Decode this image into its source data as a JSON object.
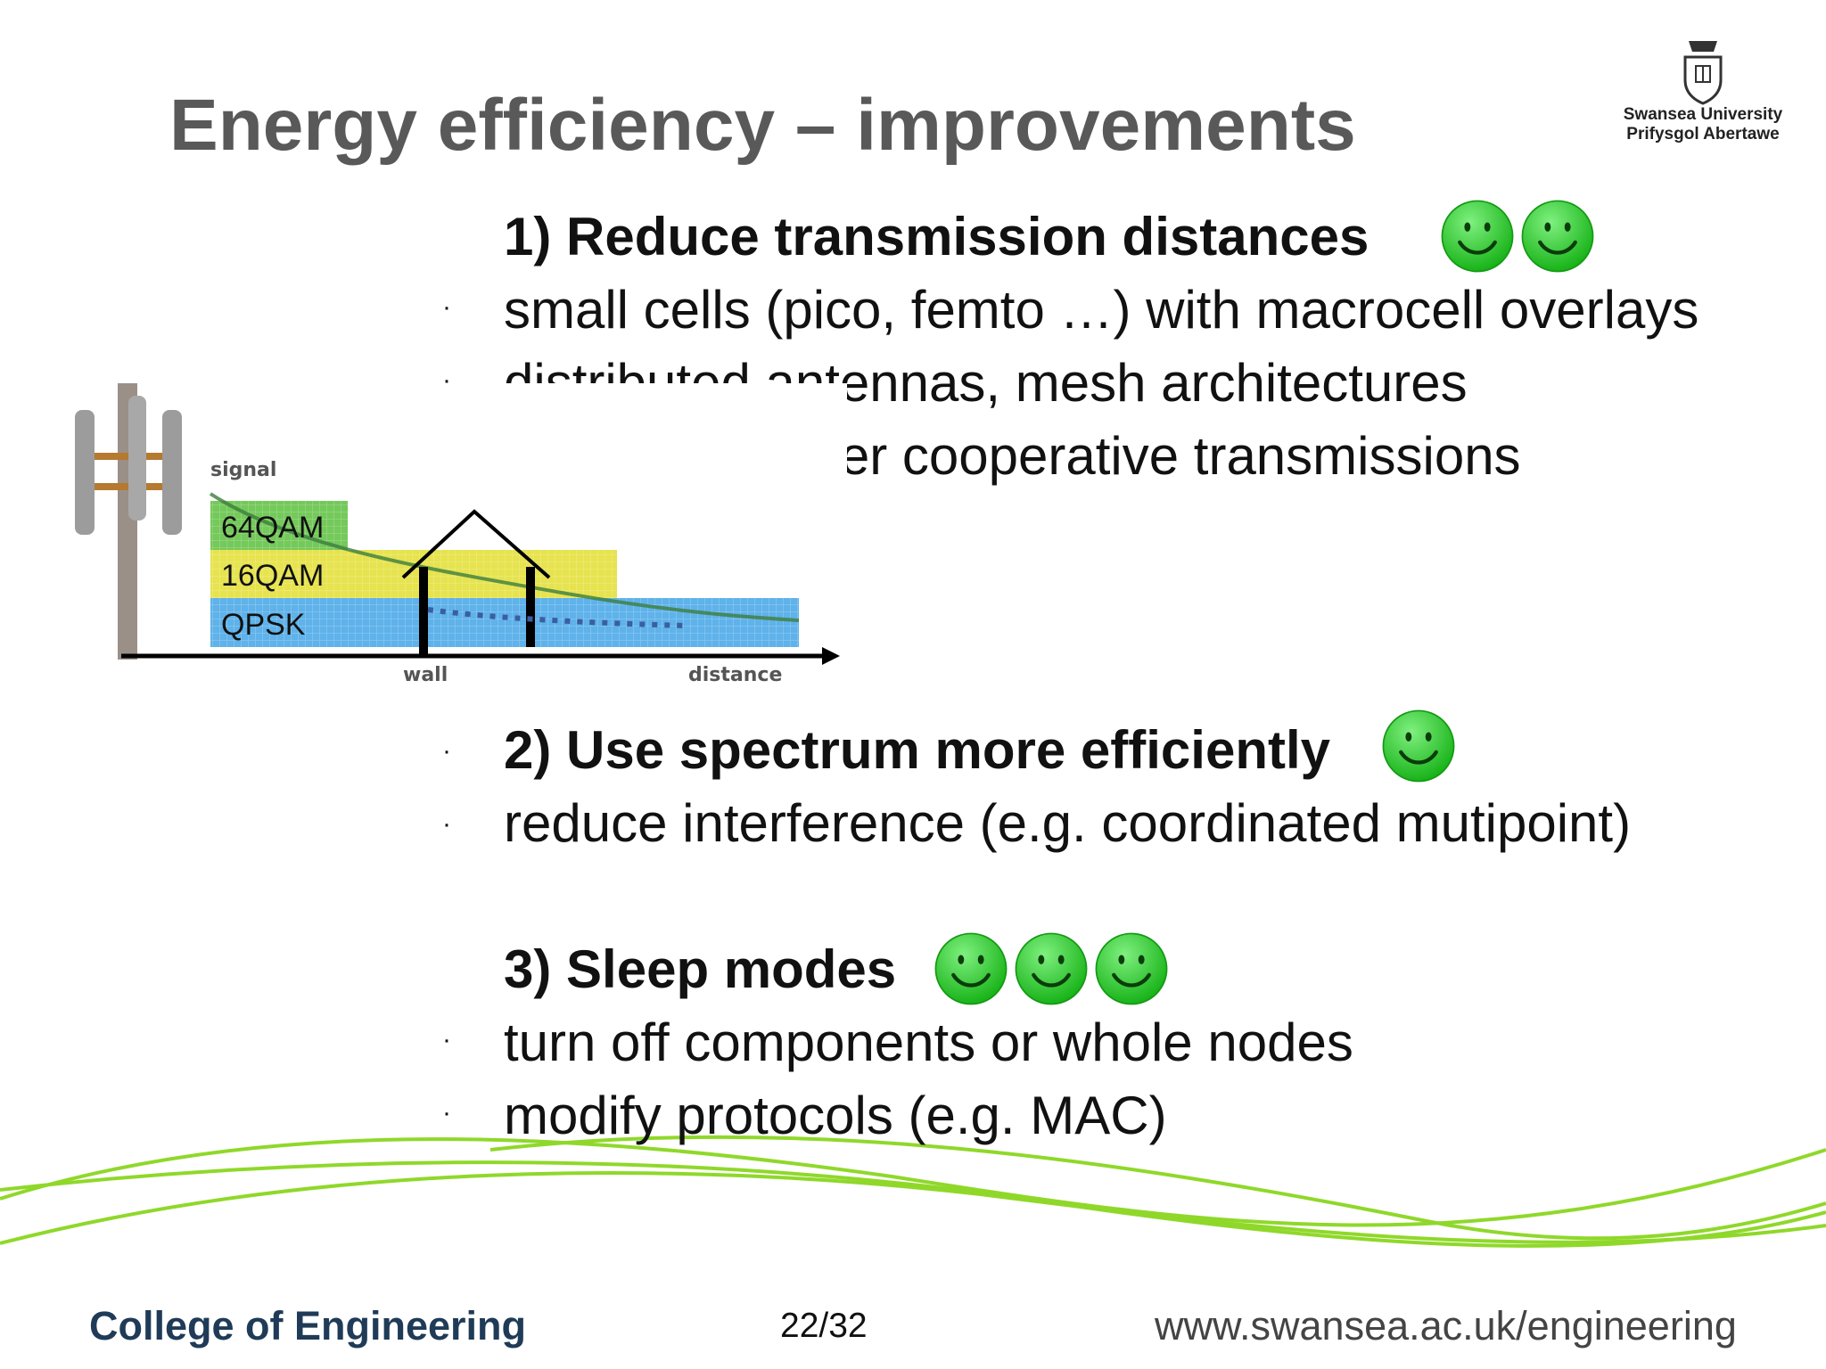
{
  "slide": {
    "title": "Energy efficiency – improvements",
    "logo": {
      "line1": "Swansea University",
      "line2": "Prifysgol Abertawe"
    },
    "section1": {
      "heading": "1) Reduce transmission distances",
      "smileys": 2,
      "bullets": [
        "small cells (pico, femto …) with macrocell overlays",
        "distributed antennas, mesh architectures",
        "relays and other cooperative transmissions"
      ]
    },
    "section2": {
      "heading": "2) Use spectrum more efficiently",
      "smileys": 1,
      "bullets": [
        "reduce interference  (e.g. coordinated mutipoint)"
      ]
    },
    "section3": {
      "heading": "3) Sleep modes",
      "smileys": 3,
      "bullets": [
        "turn off components or whole nodes",
        "modify protocols (e.g. MAC)"
      ]
    },
    "bullet_glyph": "·",
    "figure": {
      "signal_label": "signal",
      "modulations": [
        "64QAM",
        "16QAM",
        "QPSK"
      ],
      "wall_label": "wall",
      "distance_label": "distance",
      "colors": {
        "64QAM": "#74c95a",
        "16QAM": "#e6e34f",
        "QPSK": "#5fb2ea"
      }
    },
    "footer": {
      "college": "College of Engineering",
      "page": "22/32",
      "url": "www.swansea.ac.uk/engineering"
    },
    "colors": {
      "title": "#595959",
      "smiley": "#2ecc2e",
      "wave": "#8fd82a"
    }
  }
}
